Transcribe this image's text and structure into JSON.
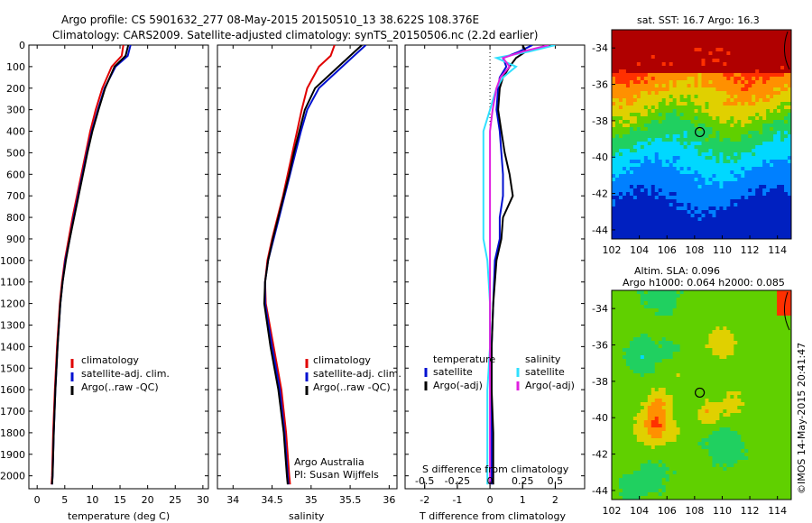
{
  "header": {
    "line1": "Argo profile: CS 5901632_277 08-May-2015 20150510_13 38.622S 108.376E",
    "line2": "Climatology: CARS2009. Satellite-adjusted climatology: synTS_20150506.nc (2.2d earlier)"
  },
  "colors": {
    "climatology": "#e00000",
    "satellite": "#0010d0",
    "argo": "#000000",
    "satellite_s": "#30e0ff",
    "argo_s": "#e020e0"
  },
  "chart_data": [
    {
      "type": "line",
      "xlabel": "temperature (deg C)",
      "ylabel": "",
      "xlim": [
        -1.5,
        31
      ],
      "ylim": [
        2060,
        0
      ],
      "xticks": [
        "0",
        "5",
        "10",
        "15",
        "20",
        "25",
        "30"
      ],
      "yticks": [
        "0",
        "100",
        "200",
        "300",
        "400",
        "500",
        "600",
        "700",
        "800",
        "900",
        "1000",
        "1100",
        "1200",
        "1300",
        "1400",
        "1500",
        "1600",
        "1700",
        "1800",
        "1900",
        "2000"
      ],
      "depth": [
        0,
        50,
        100,
        200,
        300,
        400,
        500,
        600,
        700,
        800,
        900,
        1000,
        1100,
        1200,
        1400,
        1600,
        1800,
        2000,
        2040
      ],
      "series": [
        {
          "name": "climatology",
          "values": [
            15.6,
            15.3,
            13.5,
            11.8,
            10.6,
            9.6,
            8.8,
            8.0,
            7.2,
            6.4,
            5.7,
            5.0,
            4.5,
            4.1,
            3.6,
            3.2,
            2.9,
            2.7,
            2.6
          ]
        },
        {
          "name": "satellite-adj. clim.",
          "values": [
            16.9,
            16.4,
            14.2,
            12.2,
            11.0,
            9.9,
            9.0,
            8.2,
            7.4,
            6.6,
            5.9,
            5.1,
            4.6,
            4.2,
            3.7,
            3.3,
            3.0,
            2.8,
            2.7
          ]
        },
        {
          "name": "Argo(..raw -QC)",
          "values": [
            16.5,
            16.0,
            14.0,
            12.3,
            11.1,
            10.0,
            9.1,
            8.3,
            7.5,
            6.7,
            5.9,
            5.2,
            4.6,
            4.2,
            3.7,
            3.3,
            3.0,
            2.8,
            2.7
          ]
        }
      ],
      "legend": [
        "climatology",
        "satellite-adj. clim.",
        "Argo(..raw -QC)"
      ]
    },
    {
      "type": "line",
      "xlabel": "salinity",
      "ylabel": "",
      "xlim": [
        33.8,
        36.1
      ],
      "ylim": [
        2060,
        0
      ],
      "xticks": [
        "34",
        "34.5",
        "35",
        "35.5",
        "36"
      ],
      "depth": [
        0,
        50,
        100,
        200,
        300,
        400,
        500,
        600,
        700,
        800,
        900,
        1000,
        1100,
        1200,
        1400,
        1600,
        1800,
        2000,
        2040
      ],
      "series": [
        {
          "name": "climatology",
          "values": [
            35.3,
            35.25,
            35.1,
            34.95,
            34.88,
            34.82,
            34.76,
            34.7,
            34.64,
            34.57,
            34.5,
            34.44,
            34.41,
            34.42,
            34.52,
            34.62,
            34.68,
            34.72,
            34.73
          ]
        },
        {
          "name": "satellite-adj. clim.",
          "values": [
            35.7,
            35.55,
            35.4,
            35.1,
            34.95,
            34.87,
            34.8,
            34.73,
            34.66,
            34.59,
            34.52,
            34.45,
            34.41,
            34.41,
            34.5,
            34.6,
            34.66,
            34.7,
            34.71
          ]
        },
        {
          "name": "Argo(..raw -QC)",
          "values": [
            35.65,
            35.5,
            35.35,
            35.05,
            34.92,
            34.85,
            34.78,
            34.72,
            34.65,
            34.58,
            34.51,
            34.45,
            34.41,
            34.4,
            34.48,
            34.58,
            34.65,
            34.69,
            34.7
          ]
        }
      ],
      "legend": [
        "climatology",
        "satellite-adj. clim.",
        "Argo(..raw -QC)"
      ],
      "annotation": [
        "Argo Australia",
        "PI: Susan Wijffels"
      ]
    },
    {
      "type": "line",
      "xlabel": "T difference from climatology",
      "xlabel2": "S difference from climatology",
      "xlim": [
        -2.6,
        2.9
      ],
      "ylim": [
        2060,
        0
      ],
      "xticks": [
        "-2",
        "-1",
        "0",
        "1",
        "2"
      ],
      "xticks2": [
        "-0.5",
        "-0.25",
        "0",
        "0.25",
        "0.5"
      ],
      "depth": [
        0,
        30,
        60,
        100,
        150,
        200,
        300,
        400,
        500,
        600,
        700,
        800,
        900,
        1000,
        1200,
        1400,
        1600,
        1800,
        2000,
        2040
      ],
      "series": [
        {
          "name": "satellite",
          "group": "temperature",
          "values": [
            1.3,
            0.9,
            0.4,
            0.5,
            0.3,
            0.25,
            0.2,
            0.3,
            0.35,
            0.4,
            0.4,
            0.3,
            0.3,
            0.15,
            0.1,
            0.05,
            0.05,
            0.05,
            0.05,
            0.05
          ]
        },
        {
          "name": "Argo(-adj)",
          "group": "temperature",
          "values": [
            1.0,
            1.1,
            0.8,
            0.6,
            0.4,
            0.3,
            0.25,
            0.35,
            0.45,
            0.6,
            0.7,
            0.4,
            0.35,
            0.2,
            0.1,
            0.05,
            0.05,
            0.1,
            0.1,
            0.1
          ]
        },
        {
          "name": "satellite",
          "group": "salinity",
          "values": [
            0.5,
            0.3,
            0.05,
            0.2,
            0.1,
            0.05,
            0.0,
            -0.05,
            -0.05,
            -0.05,
            -0.05,
            -0.05,
            -0.05,
            -0.02,
            0.0,
            0.0,
            -0.02,
            -0.02,
            -0.02,
            -0.02
          ]
        },
        {
          "name": "Argo(-adj)",
          "group": "salinity",
          "values": [
            0.45,
            0.25,
            0.1,
            0.15,
            0.08,
            0.05,
            0.02,
            0.0,
            0.0,
            0.0,
            0.0,
            0.0,
            0.0,
            0.0,
            0.0,
            0.0,
            0.0,
            0.0,
            0.0,
            0.0
          ]
        }
      ],
      "legend_groups": [
        "temperature",
        "salinity"
      ]
    },
    {
      "type": "heatmap",
      "title": "sat. SST: 16.7  Argo: 16.3",
      "xlim": [
        102,
        115
      ],
      "ylim": [
        -44.5,
        -33
      ],
      "xticks": [
        "102",
        "104",
        "106",
        "108",
        "110",
        "112",
        "114"
      ],
      "yticks": [
        "-34",
        "-36",
        "-38",
        "-40",
        "-42",
        "-44"
      ],
      "marker": {
        "lon": 108.376,
        "lat": -38.622
      }
    },
    {
      "type": "heatmap",
      "title": "Altim. SLA: 0.096",
      "subtitle": "Argo h1000: 0.064  h2000: 0.085",
      "xlim": [
        102,
        115
      ],
      "ylim": [
        -44.5,
        -33
      ],
      "xticks": [
        "102",
        "104",
        "106",
        "108",
        "110",
        "112",
        "114"
      ],
      "yticks": [
        "-34",
        "-36",
        "-38",
        "-40",
        "-42",
        "-44"
      ],
      "marker": {
        "lon": 108.376,
        "lat": -38.622
      }
    }
  ],
  "credit": "©IMOS 14-May-2015 20:41:47"
}
